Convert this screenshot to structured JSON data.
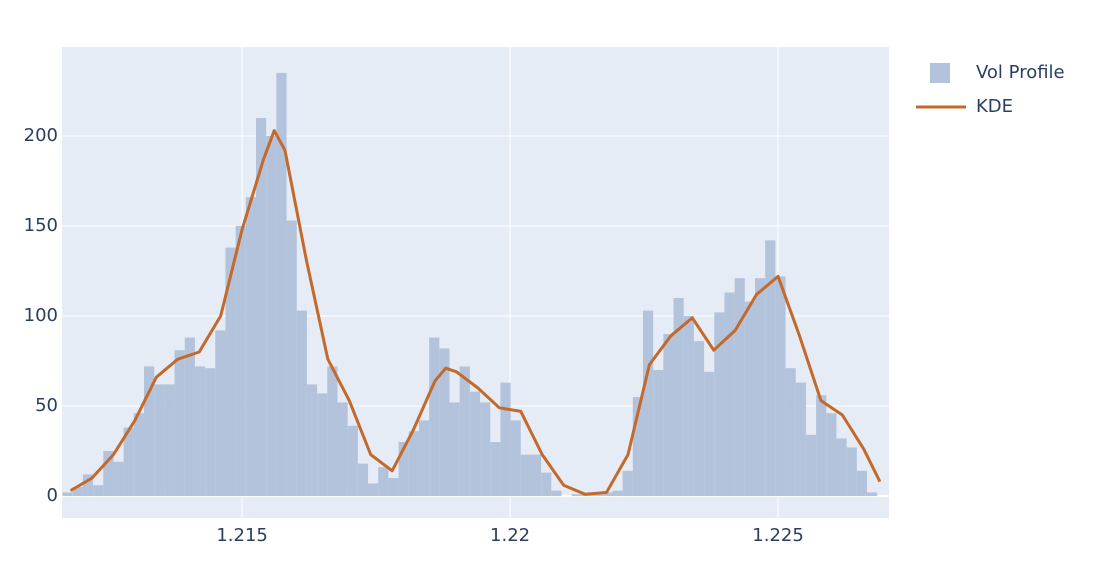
{
  "chart_data": {
    "type": "histogram",
    "bins": [
      1.21165,
      1.21184,
      1.21203,
      1.21222,
      1.21241,
      1.2126,
      1.21279,
      1.21298,
      1.21317,
      1.21336,
      1.21355,
      1.21374,
      1.21393,
      1.21412,
      1.21431,
      1.2145,
      1.21469,
      1.21488,
      1.21507,
      1.21526,
      1.21545,
      1.21564,
      1.21583,
      1.21602,
      1.21621,
      1.2164,
      1.21659,
      1.21678,
      1.21697,
      1.21716,
      1.21735,
      1.21754,
      1.21773,
      1.21792,
      1.21811,
      1.2183,
      1.21849,
      1.21868,
      1.21887,
      1.21906,
      1.21925,
      1.21944,
      1.21963,
      1.21982,
      1.22001,
      1.2202,
      1.22039,
      1.22058,
      1.22077,
      1.22096,
      1.22115,
      1.22134,
      1.22153,
      1.22172,
      1.22191,
      1.2221,
      1.22229,
      1.22248,
      1.22267,
      1.22286,
      1.22305,
      1.22324,
      1.22343,
      1.22362,
      1.22381,
      1.224,
      1.22419,
      1.22438,
      1.22457,
      1.22476,
      1.22495,
      1.22514,
      1.22533,
      1.22552,
      1.22571,
      1.2259,
      1.22609,
      1.22628,
      1.22647,
      1.22666,
      1.22685
    ],
    "series": [
      {
        "name": "Vol Profile",
        "type": "histogram",
        "color": "#b3c3dc",
        "values": [
          2,
          5,
          12,
          6,
          25,
          19,
          38,
          46,
          72,
          62,
          62,
          81,
          88,
          72,
          71,
          92,
          138,
          150,
          166,
          210,
          200,
          235,
          153,
          103,
          62,
          57,
          72,
          52,
          39,
          18,
          7,
          16,
          10,
          30,
          36,
          42,
          88,
          82,
          52,
          72,
          58,
          52,
          30,
          63,
          42,
          23,
          23,
          13,
          3,
          0,
          1,
          1,
          1,
          2,
          3,
          14,
          55,
          103,
          70,
          90,
          110,
          100,
          86,
          69,
          102,
          113,
          121,
          108,
          121,
          142,
          122,
          71,
          63,
          34,
          56,
          46,
          32,
          27,
          14,
          2
        ]
      },
      {
        "name": "KDE",
        "type": "line",
        "color": "#c3692b",
        "x": [
          1.2118,
          1.2122,
          1.2126,
          1.213,
          1.2134,
          1.2138,
          1.2142,
          1.2146,
          1.215,
          1.2154,
          1.2156,
          1.2158,
          1.2162,
          1.2166,
          1.217,
          1.2174,
          1.2178,
          1.2182,
          1.2186,
          1.2188,
          1.219,
          1.2194,
          1.2198,
          1.2202,
          1.2206,
          1.221,
          1.2214,
          1.2218,
          1.2222,
          1.2226,
          1.223,
          1.2234,
          1.2238,
          1.2242,
          1.2246,
          1.225,
          1.2254,
          1.2258,
          1.2262,
          1.2266,
          1.2269
        ],
        "values": [
          3,
          10,
          23,
          42,
          66,
          76,
          80,
          100,
          148,
          187,
          203,
          192,
          131,
          76,
          53,
          23,
          14,
          37,
          64,
          71,
          69,
          60,
          49,
          47,
          23,
          6,
          1,
          2,
          23,
          73,
          89,
          99,
          81,
          92,
          112,
          122,
          89,
          53,
          45,
          26,
          8
        ]
      }
    ],
    "xlim": [
      1.21164,
      1.22707
    ],
    "ylim": [
      -12.2,
      249.4
    ],
    "xticks": [
      1.215,
      1.22,
      1.225
    ],
    "yticks": [
      0,
      50,
      100,
      150,
      200
    ],
    "grid": true,
    "legend": "top-right"
  }
}
